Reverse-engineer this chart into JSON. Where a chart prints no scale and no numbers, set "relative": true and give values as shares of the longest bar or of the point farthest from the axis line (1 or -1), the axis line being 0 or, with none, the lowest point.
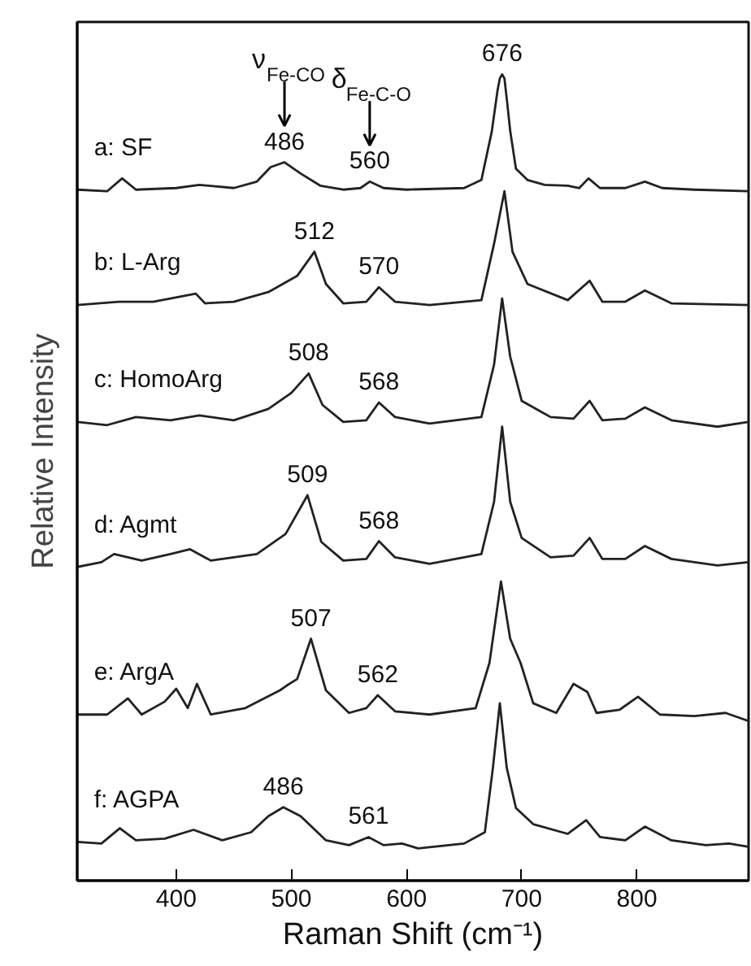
{
  "chart_data": {
    "type": "line",
    "relative": true,
    "xlabel": "Raman Shift (cm⁻¹)",
    "ylabel": "Relative Intensity",
    "xlim": [
      314,
      897
    ],
    "xticks": [
      400,
      500,
      600,
      700,
      800
    ],
    "series": [
      {
        "name": "a: SF",
        "color": "#222222",
        "x": [
          314,
          340,
          353,
          365,
          400,
          420,
          450,
          470,
          482,
          494,
          508,
          525,
          545,
          560,
          568,
          580,
          600,
          650,
          665,
          674,
          679,
          681,
          683,
          685,
          687,
          690,
          695,
          705,
          720,
          740,
          750,
          758,
          768,
          790,
          807,
          822,
          850,
          897
        ],
        "values": [
          0.857,
          0.855,
          0.871,
          0.857,
          0.859,
          0.863,
          0.859,
          0.867,
          0.885,
          0.891,
          0.877,
          0.862,
          0.857,
          0.859,
          0.867,
          0.859,
          0.857,
          0.859,
          0.869,
          0.929,
          0.98,
          0.995,
          1.0,
          0.995,
          0.97,
          0.93,
          0.883,
          0.869,
          0.863,
          0.862,
          0.859,
          0.871,
          0.859,
          0.859,
          0.867,
          0.859,
          0.857,
          0.855
        ]
      },
      {
        "name": "b: L-Arg",
        "color": "#222222",
        "x": [
          314,
          350,
          380,
          417,
          425,
          450,
          480,
          505,
          520,
          530,
          545,
          565,
          576,
          590,
          620,
          665,
          676,
          685,
          692,
          705,
          740,
          759,
          770,
          790,
          807,
          830,
          897
        ],
        "values": [
          0.714,
          0.718,
          0.718,
          0.728,
          0.716,
          0.718,
          0.73,
          0.75,
          0.78,
          0.74,
          0.716,
          0.718,
          0.736,
          0.718,
          0.714,
          0.72,
          0.79,
          0.855,
          0.78,
          0.74,
          0.72,
          0.744,
          0.718,
          0.718,
          0.732,
          0.716,
          0.714
        ]
      },
      {
        "name": "c: HomoArg",
        "color": "#222222",
        "x": [
          314,
          340,
          365,
          395,
          420,
          450,
          480,
          500,
          515,
          527,
          545,
          565,
          576,
          590,
          620,
          665,
          676,
          683,
          690,
          700,
          725,
          745,
          759,
          770,
          790,
          807,
          830,
          870,
          897
        ],
        "values": [
          0.569,
          0.565,
          0.575,
          0.571,
          0.577,
          0.571,
          0.585,
          0.605,
          0.629,
          0.59,
          0.569,
          0.571,
          0.593,
          0.575,
          0.567,
          0.575,
          0.64,
          0.722,
          0.65,
          0.595,
          0.575,
          0.573,
          0.595,
          0.571,
          0.573,
          0.587,
          0.571,
          0.563,
          0.569
        ]
      },
      {
        "name": "d: Agmt",
        "color": "#222222",
        "x": [
          314,
          335,
          346,
          370,
          395,
          412,
          430,
          470,
          495,
          514,
          526,
          545,
          565,
          576,
          590,
          620,
          665,
          676,
          683,
          690,
          700,
          725,
          745,
          759,
          770,
          790,
          807,
          830,
          870,
          897
        ],
        "values": [
          0.389,
          0.395,
          0.405,
          0.397,
          0.405,
          0.411,
          0.397,
          0.405,
          0.43,
          0.478,
          0.42,
          0.397,
          0.399,
          0.421,
          0.401,
          0.393,
          0.405,
          0.47,
          0.563,
          0.47,
          0.425,
          0.401,
          0.403,
          0.425,
          0.399,
          0.399,
          0.415,
          0.399,
          0.391,
          0.395
        ]
      },
      {
        "name": "e: ArgA",
        "color": "#222222",
        "x": [
          314,
          340,
          358,
          370,
          390,
          400,
          410,
          418,
          430,
          460,
          490,
          496,
          505,
          517,
          530,
          550,
          565,
          575,
          590,
          620,
          660,
          672,
          682,
          690,
          699,
          710,
          730,
          745,
          757,
          765,
          785,
          801,
          820,
          850,
          877,
          897
        ],
        "values": [
          0.206,
          0.206,
          0.226,
          0.206,
          0.222,
          0.238,
          0.214,
          0.244,
          0.206,
          0.214,
          0.236,
          0.242,
          0.25,
          0.3,
          0.236,
          0.208,
          0.214,
          0.23,
          0.21,
          0.206,
          0.214,
          0.27,
          0.371,
          0.3,
          0.27,
          0.22,
          0.208,
          0.244,
          0.234,
          0.208,
          0.212,
          0.228,
          0.206,
          0.204,
          0.208,
          0.198
        ]
      },
      {
        "name": "f: AGPA",
        "color": "#222222",
        "x": [
          314,
          335,
          351,
          365,
          390,
          415,
          440,
          465,
          480,
          493,
          508,
          530,
          550,
          567,
          580,
          596,
          610,
          650,
          668,
          675,
          681,
          687,
          695,
          710,
          740,
          756,
          768,
          790,
          807,
          830,
          860,
          880,
          897
        ],
        "values": [
          0.048,
          0.046,
          0.065,
          0.05,
          0.052,
          0.063,
          0.05,
          0.06,
          0.08,
          0.091,
          0.08,
          0.05,
          0.044,
          0.054,
          0.044,
          0.046,
          0.04,
          0.046,
          0.06,
          0.14,
          0.22,
          0.14,
          0.09,
          0.07,
          0.058,
          0.075,
          0.054,
          0.05,
          0.067,
          0.05,
          0.044,
          0.046,
          0.042
        ]
      }
    ],
    "annotations": [
      {
        "text": "ν$_{Fe-CO}$",
        "x": 494,
        "y": 0.891
      },
      {
        "text": "δ$_{Fe-C-O}$",
        "x": 568,
        "y": 0.867
      },
      {
        "text": "676",
        "x": 683,
        "y": 1.0
      },
      {
        "text": "486",
        "x": 494,
        "y": 0.891
      },
      {
        "text": "560",
        "x": 568,
        "y": 0.867
      },
      {
        "text": "512",
        "x": 520,
        "y": 0.78
      },
      {
        "text": "570",
        "x": 576,
        "y": 0.736
      },
      {
        "text": "508",
        "x": 515,
        "y": 0.629
      },
      {
        "text": "568",
        "x": 576,
        "y": 0.593
      },
      {
        "text": "509",
        "x": 514,
        "y": 0.478
      },
      {
        "text": "568",
        "x": 576,
        "y": 0.421
      },
      {
        "text": "507",
        "x": 517,
        "y": 0.3
      },
      {
        "text": "562",
        "x": 575,
        "y": 0.23
      },
      {
        "text": "486",
        "x": 493,
        "y": 0.091
      },
      {
        "text": "561",
        "x": 567,
        "y": 0.054
      }
    ]
  }
}
